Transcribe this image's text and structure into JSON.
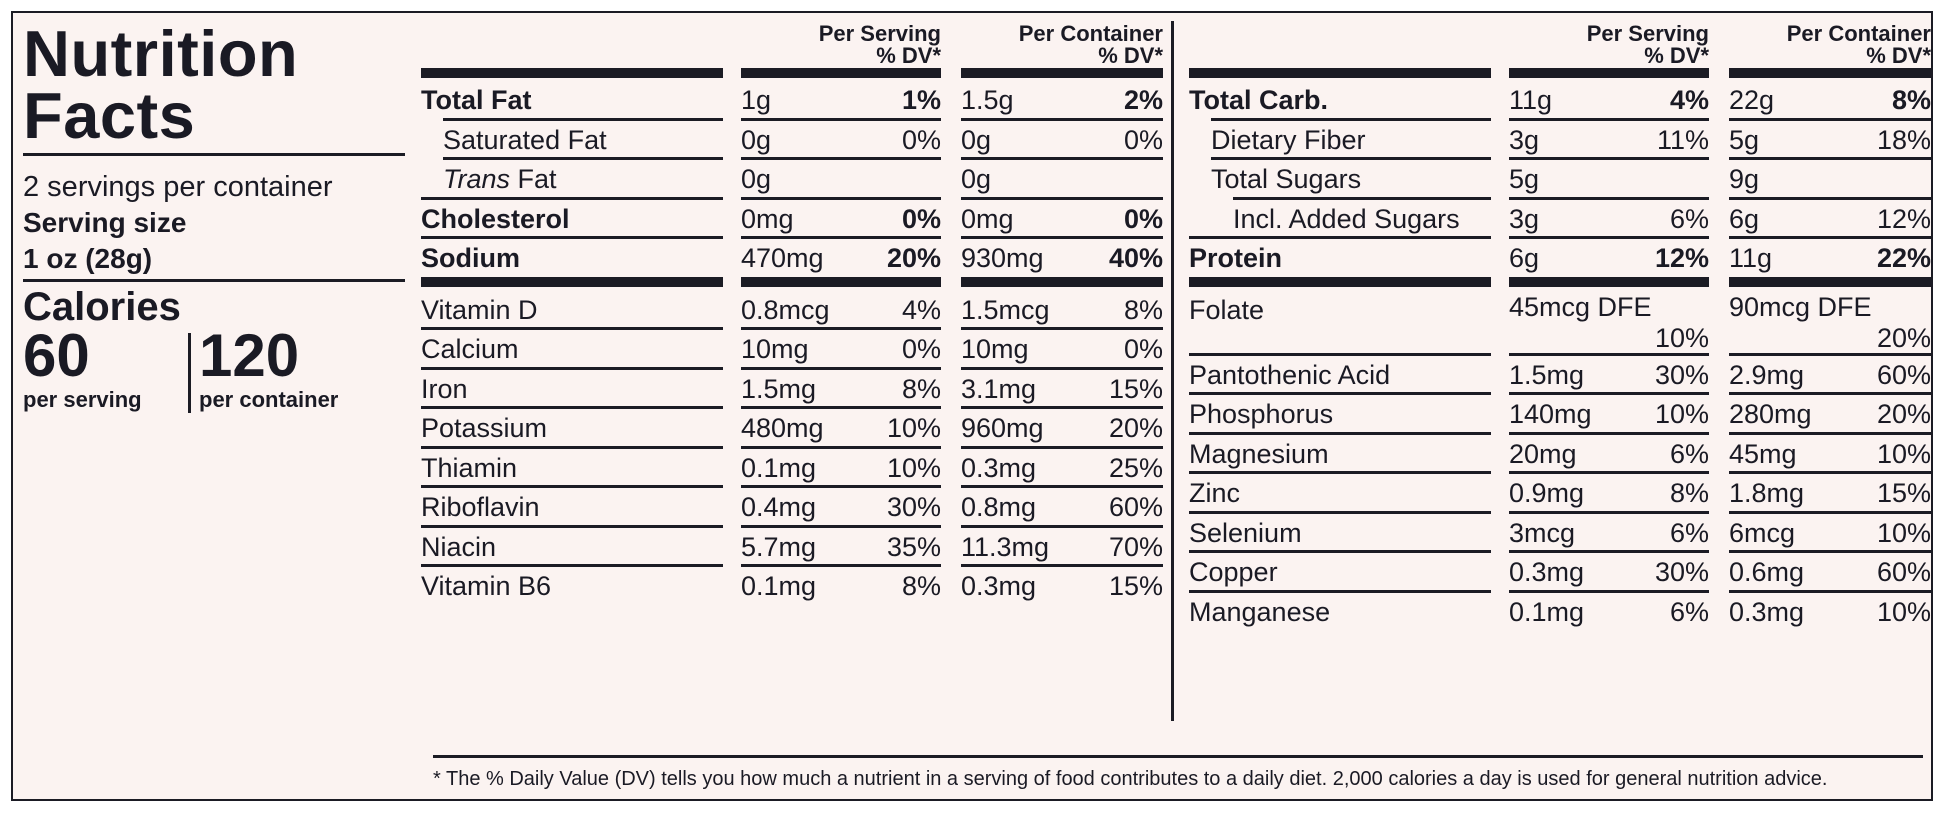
{
  "title": [
    "Nutrition",
    "Facts"
  ],
  "servings_per_container": "2 servings per container",
  "serving_size_label": "Serving size",
  "serving_size_value": "1 oz (28g)",
  "calories_label": "Calories",
  "calories_per_serving": "60",
  "calories_per_serving_label": "per serving",
  "calories_per_container": "120",
  "calories_per_container_label": "per container",
  "headers": {
    "per_serving": [
      "Per Serving",
      "% DV*"
    ],
    "per_container": [
      "Per Container",
      "% DV*"
    ]
  },
  "left_table": {
    "macros": [
      {
        "name": "Total Fat",
        "bold": true,
        "indent": 0,
        "s_amt": "1g",
        "s_dv": "1%",
        "c_amt": "1.5g",
        "c_dv": "2%"
      },
      {
        "name": "Saturated Fat",
        "bold": false,
        "indent": 1,
        "s_amt": "0g",
        "s_dv": "0%",
        "c_amt": "0g",
        "c_dv": "0%"
      },
      {
        "name": "Trans Fat",
        "italic_prefix": "Trans",
        "rest": " Fat",
        "bold": false,
        "indent": 1,
        "s_amt": "0g",
        "s_dv": "",
        "c_amt": "0g",
        "c_dv": ""
      },
      {
        "name": "Cholesterol",
        "bold": true,
        "indent": 0,
        "s_amt": "0mg",
        "s_dv": "0%",
        "c_amt": "0mg",
        "c_dv": "0%"
      },
      {
        "name": "Sodium",
        "bold": true,
        "indent": 0,
        "s_amt": "470mg",
        "s_dv": "20%",
        "c_amt": "930mg",
        "c_dv": "40%"
      }
    ],
    "micros": [
      {
        "name": "Vitamin D",
        "s_amt": "0.8mcg",
        "s_dv": "4%",
        "c_amt": "1.5mcg",
        "c_dv": "8%"
      },
      {
        "name": "Calcium",
        "s_amt": "10mg",
        "s_dv": "0%",
        "c_amt": "10mg",
        "c_dv": "0%"
      },
      {
        "name": "Iron",
        "s_amt": "1.5mg",
        "s_dv": "8%",
        "c_amt": "3.1mg",
        "c_dv": "15%"
      },
      {
        "name": "Potassium",
        "s_amt": "480mg",
        "s_dv": "10%",
        "c_amt": "960mg",
        "c_dv": "20%"
      },
      {
        "name": "Thiamin",
        "s_amt": "0.1mg",
        "s_dv": "10%",
        "c_amt": "0.3mg",
        "c_dv": "25%"
      },
      {
        "name": "Riboflavin",
        "s_amt": "0.4mg",
        "s_dv": "30%",
        "c_amt": "0.8mg",
        "c_dv": "60%"
      },
      {
        "name": "Niacin",
        "s_amt": "5.7mg",
        "s_dv": "35%",
        "c_amt": "11.3mg",
        "c_dv": "70%"
      },
      {
        "name": "Vitamin B6",
        "s_amt": "0.1mg",
        "s_dv": "8%",
        "c_amt": "0.3mg",
        "c_dv": "15%"
      }
    ]
  },
  "right_table": {
    "macros": [
      {
        "name": "Total Carb.",
        "bold": true,
        "indent": 0,
        "s_amt": "11g",
        "s_dv": "4%",
        "c_amt": "22g",
        "c_dv": "8%"
      },
      {
        "name": "Dietary Fiber",
        "bold": false,
        "indent": 1,
        "s_amt": "3g",
        "s_dv": "11%",
        "c_amt": "5g",
        "c_dv": "18%"
      },
      {
        "name": "Total Sugars",
        "bold": false,
        "indent": 1,
        "s_amt": "5g",
        "s_dv": "",
        "c_amt": "9g",
        "c_dv": ""
      },
      {
        "name": "Incl. Added Sugars",
        "bold": false,
        "indent": 2,
        "s_amt": "3g",
        "s_dv": "6%",
        "c_amt": "6g",
        "c_dv": "12%"
      },
      {
        "name": "Protein",
        "bold": true,
        "indent": 0,
        "s_amt": "6g",
        "s_dv": "12%",
        "c_amt": "11g",
        "c_dv": "22%"
      }
    ],
    "micros": [
      {
        "name": "Folate",
        "s_amt": "45mcg DFE",
        "s_dv": "10%",
        "c_amt": "90mcg DFE",
        "c_dv": "20%",
        "two_line": true
      },
      {
        "name": "Pantothenic Acid",
        "s_amt": "1.5mg",
        "s_dv": "30%",
        "c_amt": "2.9mg",
        "c_dv": "60%"
      },
      {
        "name": "Phosphorus",
        "s_amt": "140mg",
        "s_dv": "10%",
        "c_amt": "280mg",
        "c_dv": "20%"
      },
      {
        "name": "Magnesium",
        "s_amt": "20mg",
        "s_dv": "6%",
        "c_amt": "45mg",
        "c_dv": "10%"
      },
      {
        "name": "Zinc",
        "s_amt": "0.9mg",
        "s_dv": "8%",
        "c_amt": "1.8mg",
        "c_dv": "15%"
      },
      {
        "name": "Selenium",
        "s_amt": "3mcg",
        "s_dv": "6%",
        "c_amt": "6mcg",
        "c_dv": "10%"
      },
      {
        "name": "Copper",
        "s_amt": "0.3mg",
        "s_dv": "30%",
        "c_amt": "0.6mg",
        "c_dv": "60%"
      },
      {
        "name": "Manganese",
        "s_amt": "0.1mg",
        "s_dv": "6%",
        "c_amt": "0.3mg",
        "c_dv": "10%"
      }
    ]
  },
  "footnote": "* The % Daily Value (DV) tells you how much a nutrient in a serving of food contributes to a daily diet. 2,000 calories a day is used for general nutrition advice."
}
